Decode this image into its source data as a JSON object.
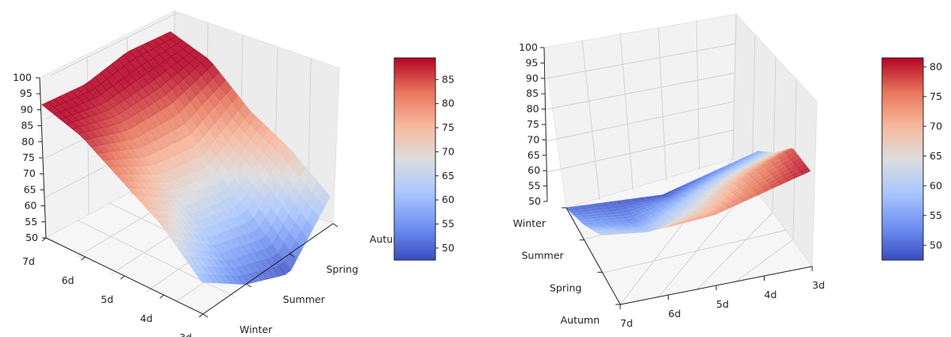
{
  "colors": {
    "colormap": [
      "#3b4cc0",
      "#6f92f3",
      "#aac7fd",
      "#dddddd",
      "#f7b89c",
      "#e7745b",
      "#b40426"
    ],
    "pane": "#f2f2f2",
    "grid": "#cfcfcf"
  },
  "chart_data": [
    {
      "type": "surface3d",
      "z_ticks": [
        "50",
        "55",
        "60",
        "65",
        "70",
        "75",
        "80",
        "85",
        "90",
        "95",
        "100"
      ],
      "x_ticks": [
        "7d",
        "6d",
        "5d",
        "4d",
        "3d"
      ],
      "y_ticks": [
        "Winter",
        "Summer",
        "Spring",
        "Autumn"
      ],
      "zlim": [
        50,
        100
      ],
      "colorbar": {
        "ticks": [
          "50",
          "55",
          "60",
          "65",
          "70",
          "75",
          "80",
          "85"
        ],
        "range": [
          47.5,
          89.5
        ]
      },
      "z_values": [
        [
          92,
          91,
          94,
          93
        ],
        [
          88,
          84,
          85,
          90
        ],
        [
          80,
          72,
          70,
          80
        ],
        [
          72,
          62,
          60,
          74
        ],
        [
          60,
          52,
          48,
          65
        ]
      ],
      "corner_peak": 90
    },
    {
      "type": "surface3d",
      "z_ticks": [
        "50",
        "55",
        "60",
        "65",
        "70",
        "75",
        "80",
        "85",
        "90",
        "95",
        "100"
      ],
      "x_ticks": [
        "7d",
        "6d",
        "5d",
        "4d",
        "3d"
      ],
      "y_ticks": [
        "Autumn",
        "Spring",
        "Summer",
        "Winter"
      ],
      "zlim": [
        50,
        100
      ],
      "colorbar": {
        "ticks": [
          "50",
          "55",
          "60",
          "65",
          "70",
          "75",
          "80"
        ],
        "range": [
          47.5,
          81.5
        ]
      },
      "z_values": [
        [
          74,
          62,
          55,
          50
        ],
        [
          72,
          60,
          53,
          49
        ],
        [
          73,
          65,
          57,
          48
        ],
        [
          77,
          72,
          62,
          52
        ],
        [
          81,
          78,
          66,
          56
        ]
      ]
    }
  ]
}
